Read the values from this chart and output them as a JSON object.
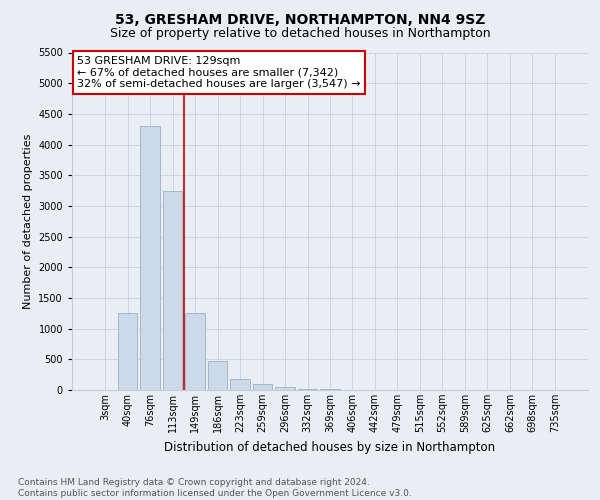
{
  "title": "53, GRESHAM DRIVE, NORTHAMPTON, NN4 9SZ",
  "subtitle": "Size of property relative to detached houses in Northampton",
  "xlabel": "Distribution of detached houses by size in Northampton",
  "ylabel": "Number of detached properties",
  "footer_line1": "Contains HM Land Registry data © Crown copyright and database right 2024.",
  "footer_line2": "Contains public sector information licensed under the Open Government Licence v3.0.",
  "annotation_line1": "53 GRESHAM DRIVE: 129sqm",
  "annotation_line2": "← 67% of detached houses are smaller (7,342)",
  "annotation_line3": "32% of semi-detached houses are larger (3,547) →",
  "categories": [
    "3sqm",
    "40sqm",
    "76sqm",
    "113sqm",
    "149sqm",
    "186sqm",
    "223sqm",
    "259sqm",
    "296sqm",
    "332sqm",
    "369sqm",
    "406sqm",
    "442sqm",
    "479sqm",
    "515sqm",
    "552sqm",
    "589sqm",
    "625sqm",
    "662sqm",
    "698sqm",
    "735sqm"
  ],
  "values": [
    0,
    1250,
    4300,
    3250,
    1250,
    470,
    180,
    90,
    50,
    20,
    10,
    5,
    2,
    1,
    0,
    0,
    0,
    0,
    0,
    0,
    0
  ],
  "bar_color": "#ccd9e8",
  "bar_edge_color": "#9ab0c8",
  "vline_color": "#cc0000",
  "vline_x": 3.5,
  "annotation_box_edge_color": "#cc0000",
  "annotation_box_fill": "#ffffff",
  "background_color": "#e8eef4",
  "plot_background": "#e8eef4",
  "grid_color": "#c0ccd8",
  "ylim": [
    0,
    5500
  ],
  "yticks": [
    0,
    500,
    1000,
    1500,
    2000,
    2500,
    3000,
    3500,
    4000,
    4500,
    5000,
    5500
  ],
  "title_fontsize": 10,
  "subtitle_fontsize": 9,
  "xlabel_fontsize": 8.5,
  "ylabel_fontsize": 8,
  "tick_fontsize": 7,
  "annotation_fontsize": 8,
  "footer_fontsize": 6.5
}
